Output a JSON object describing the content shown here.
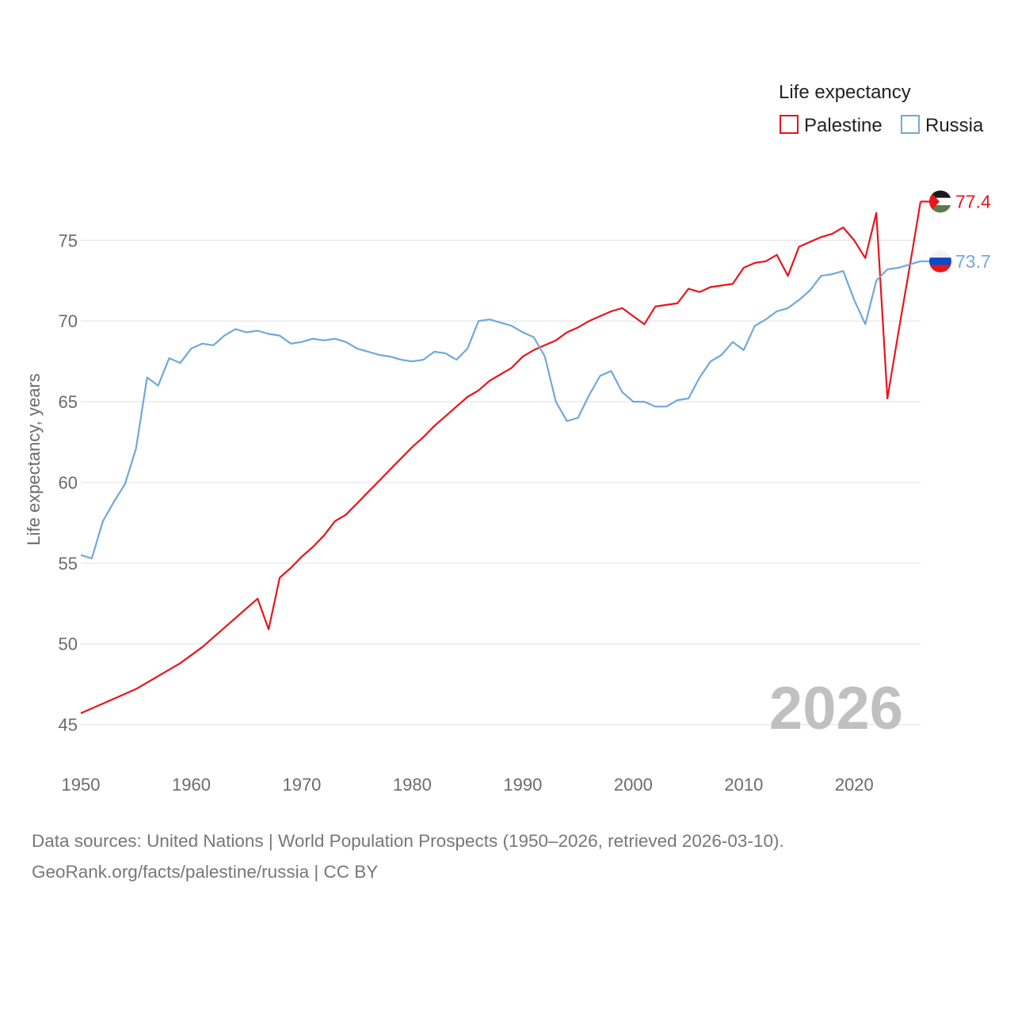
{
  "chart_data": {
    "type": "line",
    "title": "",
    "year_label": "2026",
    "ylabel": "Life expectancy, years",
    "xlabel": "",
    "xlim": [
      1950,
      2026
    ],
    "ylim": [
      44,
      78.6
    ],
    "x_ticks": [
      1950,
      1960,
      1970,
      1980,
      1990,
      2000,
      2010,
      2020
    ],
    "y_ticks": [
      45,
      50,
      55,
      60,
      65,
      70,
      75
    ],
    "legend_title": "Life expectancy",
    "legend_position": "top-right",
    "grid": true,
    "series": [
      {
        "name": "Palestine",
        "color": "#e8151b",
        "end_label": "77.4",
        "flag": "palestine-flag",
        "x": [
          1950,
          1955,
          1959,
          1961,
          1966,
          1967,
          1968,
          1969,
          1970,
          1971,
          1972,
          1973,
          1974,
          1975,
          1976,
          1977,
          1978,
          1979,
          1980,
          1981,
          1982,
          1983,
          1984,
          1985,
          1986,
          1987,
          1988,
          1989,
          1990,
          1991,
          1992,
          1993,
          1994,
          1995,
          1996,
          1997,
          1998,
          1999,
          2000,
          2001,
          2002,
          2003,
          2004,
          2005,
          2006,
          2007,
          2008,
          2009,
          2010,
          2011,
          2012,
          2013,
          2014,
          2015,
          2016,
          2017,
          2018,
          2019,
          2020,
          2021,
          2022,
          2023,
          2024,
          2025,
          2026
        ],
        "values": [
          45.7,
          47.2,
          48.8,
          49.8,
          52.8,
          50.9,
          54.1,
          54.7,
          55.4,
          56.0,
          56.7,
          57.6,
          58.0,
          58.7,
          59.4,
          60.1,
          60.8,
          61.5,
          62.2,
          62.8,
          63.5,
          64.1,
          64.7,
          65.3,
          65.7,
          66.3,
          66.7,
          67.1,
          67.8,
          68.2,
          68.5,
          68.8,
          69.3,
          69.6,
          70.0,
          70.3,
          70.6,
          70.8,
          70.3,
          69.8,
          70.9,
          71.0,
          71.1,
          72.0,
          71.8,
          72.1,
          72.2,
          72.3,
          73.3,
          73.6,
          73.7,
          74.1,
          72.8,
          74.6,
          74.9,
          75.2,
          75.4,
          75.8,
          75.0,
          73.9,
          76.7,
          65.2,
          69.3,
          73.3,
          77.4
        ]
      },
      {
        "name": "Russia",
        "color": "#70a8dc",
        "end_label": "73.7",
        "flag": "russia-flag",
        "x": [
          1950,
          1951,
          1952,
          1953,
          1954,
          1955,
          1956,
          1957,
          1958,
          1959,
          1960,
          1961,
          1962,
          1963,
          1964,
          1965,
          1966,
          1967,
          1968,
          1969,
          1970,
          1971,
          1972,
          1973,
          1974,
          1975,
          1976,
          1977,
          1978,
          1979,
          1980,
          1981,
          1982,
          1983,
          1984,
          1985,
          1986,
          1987,
          1988,
          1989,
          1990,
          1991,
          1992,
          1993,
          1994,
          1995,
          1996,
          1997,
          1998,
          1999,
          2000,
          2001,
          2002,
          2003,
          2004,
          2005,
          2006,
          2007,
          2008,
          2009,
          2010,
          2011,
          2012,
          2013,
          2014,
          2015,
          2016,
          2017,
          2018,
          2019,
          2020,
          2021,
          2022,
          2023,
          2024,
          2025,
          2026
        ],
        "values": [
          55.5,
          55.3,
          57.6,
          58.8,
          59.9,
          62.1,
          66.5,
          66.0,
          67.7,
          67.4,
          68.3,
          68.6,
          68.5,
          69.1,
          69.5,
          69.3,
          69.4,
          69.2,
          69.1,
          68.6,
          68.7,
          68.9,
          68.8,
          68.9,
          68.7,
          68.3,
          68.1,
          67.9,
          67.8,
          67.6,
          67.5,
          67.6,
          68.1,
          68.0,
          67.6,
          68.3,
          70.0,
          70.1,
          69.9,
          69.7,
          69.3,
          69.0,
          67.8,
          65.0,
          63.8,
          64.0,
          65.4,
          66.6,
          66.9,
          65.6,
          65.0,
          65.0,
          64.7,
          64.7,
          65.1,
          65.2,
          66.5,
          67.5,
          67.9,
          68.7,
          68.2,
          69.7,
          70.1,
          70.6,
          70.8,
          71.3,
          71.9,
          72.8,
          72.9,
          73.1,
          71.3,
          69.8,
          72.5,
          73.2,
          73.3,
          73.5,
          73.7
        ]
      }
    ]
  },
  "footer": {
    "line1": "Data sources: United Nations | World Population Prospects (1950–2026, retrieved 2026-03-10).",
    "line2": "GeoRank.org/facts/palestine/russia | CC BY"
  }
}
